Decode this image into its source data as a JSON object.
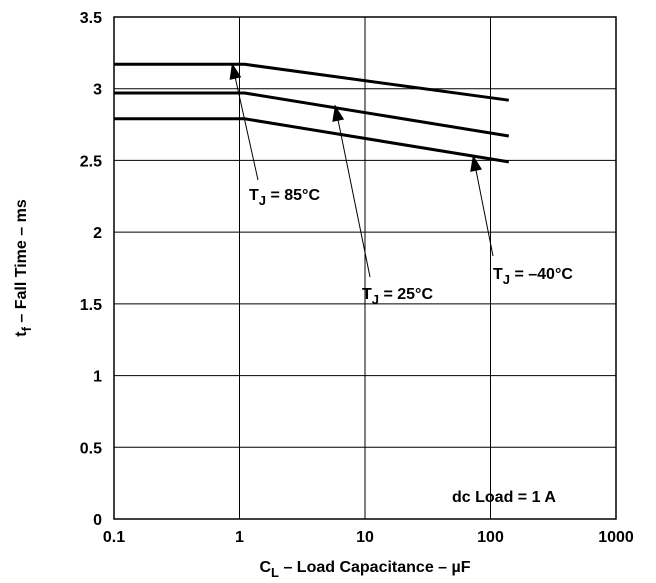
{
  "chart_data": {
    "type": "line",
    "title": "",
    "x_scale": "log",
    "xlim": [
      0.1,
      1000
    ],
    "ylim": [
      0,
      3.5
    ],
    "x_ticks": [
      "0.1",
      "1",
      "10",
      "100",
      "1000"
    ],
    "y_ticks": [
      "0",
      "0.5",
      "1",
      "1.5",
      "2",
      "2.5",
      "3",
      "3.5"
    ],
    "grid": true,
    "xlabel": {
      "main": "C",
      "sub": "L",
      "rest": " – Load Capacitance – µF"
    },
    "ylabel": {
      "main": "t",
      "sub": "f",
      "rest": "  – Fall Time – ms"
    },
    "series": [
      {
        "name": {
          "main": "T",
          "sub": "J",
          "rest": " = 85°C"
        },
        "x": [
          0.1,
          1.1,
          140
        ],
        "y": [
          3.17,
          3.17,
          2.92
        ]
      },
      {
        "name": {
          "main": "T",
          "sub": "J",
          "rest": " = 25°C"
        },
        "x": [
          0.1,
          1.1,
          140
        ],
        "y": [
          2.97,
          2.97,
          2.67
        ]
      },
      {
        "name": {
          "main": "T",
          "sub": "J",
          "rest": " = –40°C"
        },
        "x": [
          0.1,
          1.1,
          140
        ],
        "y": [
          2.79,
          2.79,
          2.49
        ]
      }
    ],
    "annotations": [
      {
        "text": "dc Load = 1 A"
      }
    ],
    "line_color": "#000000"
  }
}
